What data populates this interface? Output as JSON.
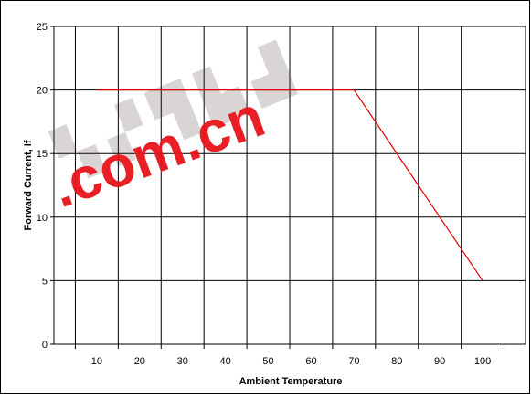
{
  "chart_data": {
    "type": "line",
    "title": "",
    "xlabel": "Ambient Temperature",
    "ylabel": "Forward Current, If",
    "xticks": [
      "10",
      "20",
      "30",
      "40",
      "50",
      "60",
      "70",
      "80",
      "90",
      "100"
    ],
    "xlim": [
      0,
      110
    ],
    "ylim": [
      0,
      25
    ],
    "yticks": [
      0,
      5,
      10,
      15,
      20,
      25
    ],
    "grid": true,
    "series": [
      {
        "name": "",
        "color": "#e00000",
        "points": [
          [
            10,
            20
          ],
          [
            70,
            20
          ],
          [
            100,
            5
          ]
        ]
      }
    ]
  },
  "watermark": {
    "text": ".com.cn",
    "color": "#e8141b"
  }
}
